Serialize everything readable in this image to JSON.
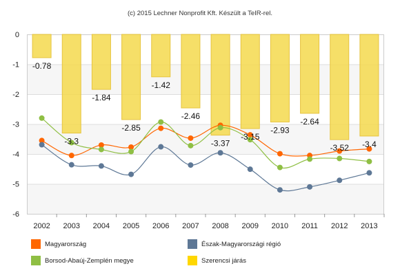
{
  "credit": "(c) 2015 Lechner Nonprofit Kft. Készült a TeIR-rel.",
  "chart_data": {
    "type": "bar",
    "categories": [
      "2002",
      "2003",
      "2004",
      "2005",
      "2006",
      "2007",
      "2008",
      "2009",
      "2010",
      "2011",
      "2012",
      "2013"
    ],
    "ylim": [
      -6,
      0
    ],
    "yticks": [
      0,
      -1,
      -2,
      -3,
      -4,
      -5,
      -6
    ],
    "grid": true,
    "bar_series": {
      "name": "Szerencsi járás",
      "color": "#f5d94e",
      "values": [
        -0.78,
        -3.3,
        -1.84,
        -2.85,
        -1.42,
        -2.46,
        -3.37,
        -3.15,
        -2.93,
        -2.64,
        -3.52,
        -3.4
      ],
      "labels": [
        "-0.78",
        "-3.3",
        "-1.84",
        "-2.85",
        "-1.42",
        "-2.46",
        "-3.37",
        "-3.15",
        "-2.93",
        "-2.64",
        "-3.52",
        "-3.4"
      ]
    },
    "line_series": [
      {
        "name": "Magyarország",
        "color": "#ff6600",
        "values": [
          -3.55,
          -4.05,
          -3.7,
          -3.77,
          -3.14,
          -3.47,
          -3.04,
          -3.36,
          -3.99,
          -4.05,
          -3.9,
          -3.83
        ]
      },
      {
        "name": "Észak-Magyarországi régió",
        "color": "#5e7896",
        "values": [
          -3.69,
          -4.36,
          -4.4,
          -4.68,
          -3.76,
          -4.37,
          -3.96,
          -4.51,
          -5.2,
          -5.1,
          -4.88,
          -4.63
        ]
      },
      {
        "name": "Borsod-Abaúj-Zemplén megye",
        "color": "#8fbf44",
        "values": [
          -2.8,
          -3.62,
          -3.85,
          -3.92,
          -2.93,
          -3.72,
          -3.12,
          -3.52,
          -4.45,
          -4.17,
          -4.15,
          -4.25
        ]
      }
    ],
    "legend": {
      "position": "bottom",
      "items": [
        {
          "label": "Magyarország",
          "color": "#ff6600"
        },
        {
          "label": "Észak-Magyarországi régió",
          "color": "#5e7896"
        },
        {
          "label": "Borsod-Abaúj-Zemplén megye",
          "color": "#8fbf44"
        },
        {
          "label": "Szerencsi járás",
          "color": "#ffd700"
        }
      ]
    }
  }
}
